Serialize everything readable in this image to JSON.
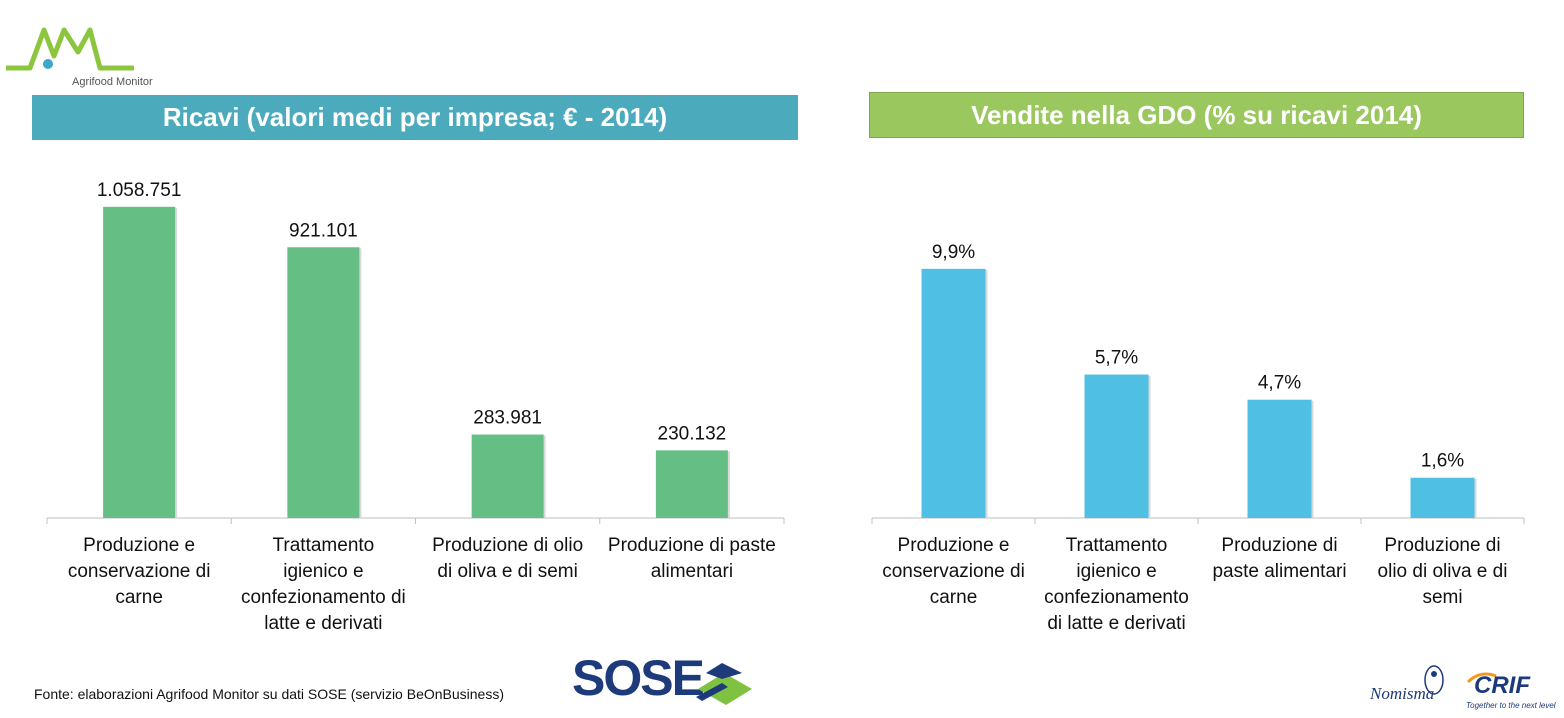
{
  "logo": {
    "text": "Agrifood Monitor"
  },
  "banners": {
    "left": "Ricavi  (valori medi per impresa; € - 2014)",
    "right": "Vendite nella GDO (% su ricavi 2014)"
  },
  "colors": {
    "left_banner": "#4babbc",
    "right_banner": "#9bc75f",
    "left_bars": "#65bf85",
    "right_bars": "#50bfe4"
  },
  "chart_data": [
    {
      "type": "bar",
      "categories": [
        "Produzione e conservazione di carne",
        "Trattamento igienico e confezionamento di latte e derivati",
        "Produzione di olio di oliva e di semi",
        "Produzione di paste alimentari"
      ],
      "values": [
        1058751,
        921101,
        283981,
        230132
      ],
      "data_labels": [
        "1.058.751",
        "921.101",
        "283.981",
        "230.132"
      ],
      "title": "Ricavi  (valori medi per impresa; € - 2014)",
      "ylim": [
        0,
        1150000
      ],
      "grid": false
    },
    {
      "type": "bar",
      "categories": [
        "Produzione e conservazione di carne",
        "Trattamento igienico e confezionamento di latte e derivati",
        "Produzione di paste alimentari",
        "Produzione di olio di oliva e di semi"
      ],
      "values": [
        9.9,
        5.7,
        4.7,
        1.6
      ],
      "data_labels": [
        "9,9%",
        "5,7%",
        "4,7%",
        "1,6%"
      ],
      "title": "Vendite nella GDO (% su ricavi 2014)",
      "ylim": [
        0,
        12
      ],
      "grid": false
    }
  ],
  "footer": {
    "source": "Fonte: elaborazioni Agrifood Monitor su dati SOSE (servizio BeOnBusiness)"
  },
  "logos": {
    "sose": "SOSE",
    "nomisma": "Nomisma",
    "crif": "CRIF",
    "crif_tagline": "Together to the next level"
  }
}
